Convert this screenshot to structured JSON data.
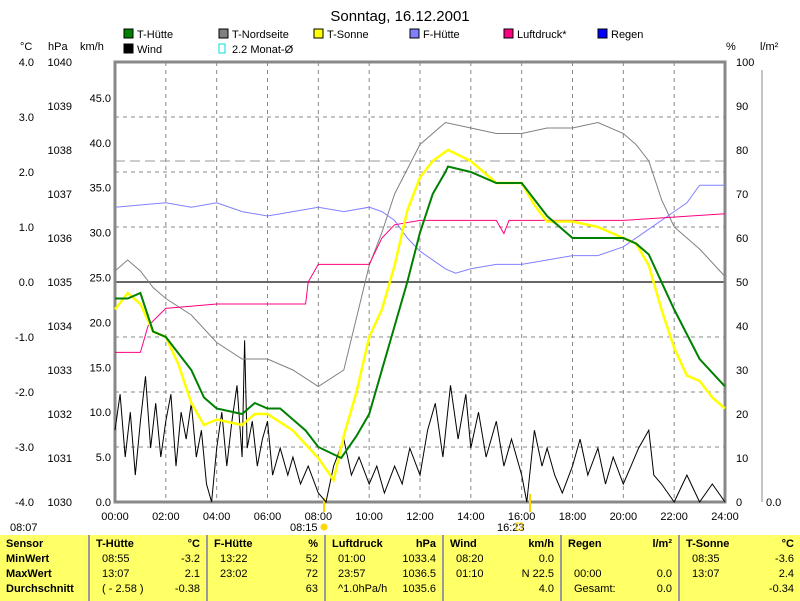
{
  "chart_data": {
    "type": "line",
    "title": "Sonntag, 16.12.2001",
    "legend": [
      {
        "name": "T-Hütte",
        "color": "#008000"
      },
      {
        "name": "Wind",
        "color": "#000000"
      },
      {
        "name": "T-Nordseite",
        "color": "#808080"
      },
      {
        "name": "2.2 Monat-Ø",
        "color": "#00e0e0"
      },
      {
        "name": "T-Sonne",
        "color": "#ffff00"
      },
      {
        "name": "F-Hütte",
        "color": "#8080ff"
      },
      {
        "name": "Luftdruck*",
        "color": "#ff0080"
      },
      {
        "name": "Regen",
        "color": "#0000ff"
      }
    ],
    "legend_placement": "top",
    "axis_units": {
      "temp": "°C",
      "press": "hPa",
      "wind": "km/h",
      "hum": "%",
      "rain": "l/m²"
    },
    "temp_ticks": [
      "4.0",
      "3.0",
      "2.0",
      "1.0",
      "0.0",
      "-1.0",
      "-2.0",
      "-3.0",
      "-4.0"
    ],
    "press_ticks": [
      "1040",
      "1039",
      "1038",
      "1037",
      "1036",
      "1035",
      "1034",
      "1033",
      "1032",
      "1031",
      "1030"
    ],
    "wind_ticks": [
      "45.0",
      "40.0",
      "35.0",
      "30.0",
      "25.0",
      "20.0",
      "15.0",
      "10.0",
      "5.0",
      "0.0"
    ],
    "hum_ticks": [
      "100",
      "90",
      "80",
      "70",
      "60",
      "50",
      "40",
      "30",
      "20",
      "10",
      "0"
    ],
    "rain_ticks": [
      "0.0"
    ],
    "x_ticks": [
      "00:00",
      "02:00",
      "04:00",
      "06:00",
      "08:00",
      "10:00",
      "12:00",
      "14:00",
      "16:00",
      "18:00",
      "20:00",
      "22:00",
      "24:00"
    ],
    "xlim": [
      0,
      24
    ],
    "temp_lim": [
      -4,
      4
    ],
    "press_lim": [
      1030,
      1040
    ],
    "wind_lim": [
      0,
      49
    ],
    "hum_lim": [
      0,
      100
    ],
    "month_avg": 2.2,
    "start_time": "08:07",
    "sunrise": "08:15",
    "sunset": "16:23",
    "series": {
      "t_huette": [
        [
          0,
          -0.3
        ],
        [
          0.5,
          -0.3
        ],
        [
          1,
          -0.2
        ],
        [
          1.5,
          -0.9
        ],
        [
          2,
          -1.0
        ],
        [
          3,
          -1.6
        ],
        [
          3.5,
          -2.1
        ],
        [
          4,
          -2.3
        ],
        [
          5,
          -2.4
        ],
        [
          5.5,
          -2.2
        ],
        [
          6,
          -2.3
        ],
        [
          6.5,
          -2.3
        ],
        [
          7,
          -2.5
        ],
        [
          7.5,
          -2.7
        ],
        [
          8,
          -3.0
        ],
        [
          8.9,
          -3.2
        ],
        [
          9.5,
          -2.8
        ],
        [
          10,
          -2.4
        ],
        [
          11,
          -0.8
        ],
        [
          11.5,
          0.0
        ],
        [
          12,
          0.9
        ],
        [
          12.5,
          1.6
        ],
        [
          13,
          2.0
        ],
        [
          13.1,
          2.1
        ],
        [
          14,
          2.0
        ],
        [
          15,
          1.8
        ],
        [
          16,
          1.8
        ],
        [
          16.5,
          1.5
        ],
        [
          17,
          1.2
        ],
        [
          18,
          0.8
        ],
        [
          19,
          0.8
        ],
        [
          20,
          0.8
        ],
        [
          20.5,
          0.7
        ],
        [
          21,
          0.5
        ],
        [
          22,
          -0.5
        ],
        [
          23,
          -1.4
        ],
        [
          24,
          -1.9
        ]
      ],
      "t_sonne": [
        [
          0,
          -0.5
        ],
        [
          0.5,
          -0.2
        ],
        [
          1,
          -0.4
        ],
        [
          1.5,
          -0.9
        ],
        [
          2,
          -1.0
        ],
        [
          2.5,
          -1.5
        ],
        [
          3,
          -2.2
        ],
        [
          3.5,
          -2.6
        ],
        [
          4,
          -2.5
        ],
        [
          5,
          -2.6
        ],
        [
          5.5,
          -2.4
        ],
        [
          6,
          -2.4
        ],
        [
          7,
          -2.7
        ],
        [
          8,
          -3.2
        ],
        [
          8.6,
          -3.6
        ],
        [
          9,
          -2.8
        ],
        [
          9.5,
          -2.0
        ],
        [
          10,
          -1.0
        ],
        [
          10.5,
          -0.5
        ],
        [
          11,
          0.3
        ],
        [
          11.5,
          1.3
        ],
        [
          12,
          1.9
        ],
        [
          12.5,
          2.2
        ],
        [
          13.1,
          2.4
        ],
        [
          14,
          2.2
        ],
        [
          14.5,
          2.0
        ],
        [
          15,
          1.8
        ],
        [
          16,
          1.8
        ],
        [
          16.5,
          1.4
        ],
        [
          17,
          1.1
        ],
        [
          18,
          1.1
        ],
        [
          19,
          1.0
        ],
        [
          19.5,
          0.9
        ],
        [
          20,
          0.8
        ],
        [
          20.5,
          0.7
        ],
        [
          21,
          0.3
        ],
        [
          21.5,
          -0.5
        ],
        [
          22,
          -1.2
        ],
        [
          22.5,
          -1.7
        ],
        [
          23,
          -1.8
        ],
        [
          23.5,
          -2.1
        ],
        [
          24,
          -2.3
        ]
      ],
      "t_nord": [
        [
          0,
          0.2
        ],
        [
          0.5,
          0.4
        ],
        [
          1,
          0.2
        ],
        [
          1.5,
          -0.1
        ],
        [
          2,
          -0.3
        ],
        [
          3,
          -0.6
        ],
        [
          4,
          -1.1
        ],
        [
          5,
          -1.4
        ],
        [
          6,
          -1.4
        ],
        [
          7,
          -1.6
        ],
        [
          8,
          -1.9
        ],
        [
          9,
          -1.6
        ],
        [
          10,
          0.3
        ],
        [
          10.5,
          0.9
        ],
        [
          11,
          1.6
        ],
        [
          12,
          2.5
        ],
        [
          13,
          2.9
        ],
        [
          14,
          2.8
        ],
        [
          15,
          2.7
        ],
        [
          16,
          2.7
        ],
        [
          17,
          2.8
        ],
        [
          18,
          2.8
        ],
        [
          19,
          2.9
        ],
        [
          20,
          2.7
        ],
        [
          20.5,
          2.5
        ],
        [
          21,
          2.2
        ],
        [
          21.5,
          1.5
        ],
        [
          22,
          1.0
        ],
        [
          23,
          0.6
        ],
        [
          24,
          0.1
        ]
      ],
      "f_huette": [
        [
          0,
          67
        ],
        [
          2,
          68
        ],
        [
          3,
          67
        ],
        [
          4,
          68
        ],
        [
          5,
          66
        ],
        [
          6,
          65
        ],
        [
          7,
          66
        ],
        [
          8,
          67
        ],
        [
          9,
          66
        ],
        [
          10,
          67
        ],
        [
          10.5,
          66
        ],
        [
          11,
          64
        ],
        [
          11.5,
          60
        ],
        [
          12,
          57
        ],
        [
          13,
          53
        ],
        [
          13.4,
          52
        ],
        [
          14,
          53
        ],
        [
          15,
          54
        ],
        [
          16,
          54
        ],
        [
          17,
          55
        ],
        [
          18,
          56
        ],
        [
          19,
          56
        ],
        [
          20,
          58
        ],
        [
          21,
          62
        ],
        [
          22,
          66
        ],
        [
          22.5,
          68
        ],
        [
          23,
          72
        ],
        [
          24,
          72
        ]
      ],
      "luftdruck": [
        [
          0,
          1033.4
        ],
        [
          1,
          1033.4
        ],
        [
          1.3,
          1034.0
        ],
        [
          2,
          1034.4
        ],
        [
          4,
          1034.5
        ],
        [
          7.5,
          1034.5
        ],
        [
          7.6,
          1035.0
        ],
        [
          8,
          1035.4
        ],
        [
          10,
          1035.4
        ],
        [
          10.5,
          1036.0
        ],
        [
          11,
          1036.3
        ],
        [
          12,
          1036.4
        ],
        [
          15,
          1036.4
        ],
        [
          15.3,
          1036.1
        ],
        [
          15.5,
          1036.4
        ],
        [
          20,
          1036.4
        ],
        [
          24,
          1036.55
        ]
      ],
      "wind": [
        [
          0,
          8
        ],
        [
          0.2,
          12
        ],
        [
          0.4,
          5
        ],
        [
          0.6,
          10
        ],
        [
          0.8,
          3
        ],
        [
          1,
          9
        ],
        [
          1.2,
          14
        ],
        [
          1.4,
          6
        ],
        [
          1.6,
          11
        ],
        [
          1.8,
          5
        ],
        [
          2,
          9
        ],
        [
          2.2,
          12
        ],
        [
          2.4,
          4
        ],
        [
          2.6,
          10
        ],
        [
          2.8,
          7
        ],
        [
          3,
          11
        ],
        [
          3.2,
          5
        ],
        [
          3.4,
          8
        ],
        [
          3.6,
          2
        ],
        [
          3.8,
          0
        ],
        [
          4,
          6
        ],
        [
          4.2,
          10
        ],
        [
          4.4,
          4
        ],
        [
          4.6,
          9
        ],
        [
          4.8,
          13
        ],
        [
          5,
          5
        ],
        [
          5.1,
          18
        ],
        [
          5.2,
          6
        ],
        [
          5.4,
          9
        ],
        [
          5.6,
          4
        ],
        [
          5.8,
          7
        ],
        [
          6,
          9
        ],
        [
          6.2,
          3
        ],
        [
          6.5,
          6
        ],
        [
          6.8,
          3
        ],
        [
          7,
          5
        ],
        [
          7.3,
          2
        ],
        [
          7.6,
          4
        ],
        [
          8,
          1
        ],
        [
          8.3,
          0
        ],
        [
          8.6,
          4
        ],
        [
          9,
          7
        ],
        [
          9.3,
          3
        ],
        [
          9.6,
          5
        ],
        [
          10,
          2
        ],
        [
          10.3,
          4
        ],
        [
          10.6,
          1
        ],
        [
          11,
          4
        ],
        [
          11.3,
          2
        ],
        [
          11.6,
          6
        ],
        [
          12,
          3
        ],
        [
          12.3,
          8
        ],
        [
          12.6,
          11
        ],
        [
          12.9,
          5
        ],
        [
          13.2,
          13
        ],
        [
          13.5,
          7
        ],
        [
          13.8,
          12
        ],
        [
          14,
          6
        ],
        [
          14.3,
          10
        ],
        [
          14.6,
          5
        ],
        [
          15,
          9
        ],
        [
          15.3,
          4
        ],
        [
          15.6,
          7
        ],
        [
          16,
          3
        ],
        [
          16.2,
          0
        ],
        [
          16.5,
          8
        ],
        [
          16.8,
          4
        ],
        [
          17,
          6
        ],
        [
          17.3,
          3
        ],
        [
          17.6,
          1
        ],
        [
          18,
          4
        ],
        [
          18.3,
          7
        ],
        [
          18.6,
          3
        ],
        [
          19,
          6
        ],
        [
          19.3,
          2
        ],
        [
          19.6,
          5
        ],
        [
          20,
          2
        ],
        [
          20.3,
          4
        ],
        [
          20.6,
          6
        ],
        [
          21,
          8
        ],
        [
          21.2,
          3
        ],
        [
          21.5,
          2
        ],
        [
          22,
          0
        ],
        [
          22.5,
          3
        ],
        [
          23,
          0
        ],
        [
          23.5,
          2
        ],
        [
          24,
          0
        ]
      ]
    }
  },
  "table": {
    "cols": [
      {
        "h": [
          "Sensor",
          ""
        ],
        "rows": [
          [
            "MinWert",
            ""
          ],
          [
            "MaxWert",
            ""
          ],
          [
            "Durchschnitt",
            ""
          ]
        ],
        "w": 88
      },
      {
        "h": [
          "T-Hütte",
          "°C"
        ],
        "rows": [
          [
            "08:55",
            "-3.2"
          ],
          [
            "13:07",
            "2.1"
          ],
          [
            "( - 2.58 )",
            "-0.38"
          ]
        ],
        "w": 118
      },
      {
        "h": [
          "F-Hütte",
          "%"
        ],
        "rows": [
          [
            "13:22",
            "52"
          ],
          [
            "23:02",
            "72"
          ],
          [
            "",
            "63"
          ]
        ],
        "w": 118
      },
      {
        "h": [
          "Luftdruck",
          "hPa"
        ],
        "rows": [
          [
            "01:00",
            "1033.4"
          ],
          [
            "23:57",
            "1036.5"
          ],
          [
            "^1.0hPa/h",
            "1035.6"
          ]
        ],
        "w": 118
      },
      {
        "h": [
          "Wind",
          "km/h"
        ],
        "rows": [
          [
            "08:20",
            "0.0"
          ],
          [
            "01:10",
            "N 22.5"
          ],
          [
            "",
            "4.0"
          ]
        ],
        "w": 118
      },
      {
        "h": [
          "Regen",
          "l/m²"
        ],
        "rows": [
          [
            "",
            ""
          ],
          [
            "00:00",
            "0.0"
          ],
          [
            "Gesamt:",
            "0.0"
          ]
        ],
        "w": 118
      },
      {
        "h": [
          "T-Sonne",
          "°C"
        ],
        "rows": [
          [
            "08:35",
            "-3.6"
          ],
          [
            "13:07",
            "2.4"
          ],
          [
            "",
            "-0.34"
          ]
        ],
        "w": 122
      }
    ]
  }
}
